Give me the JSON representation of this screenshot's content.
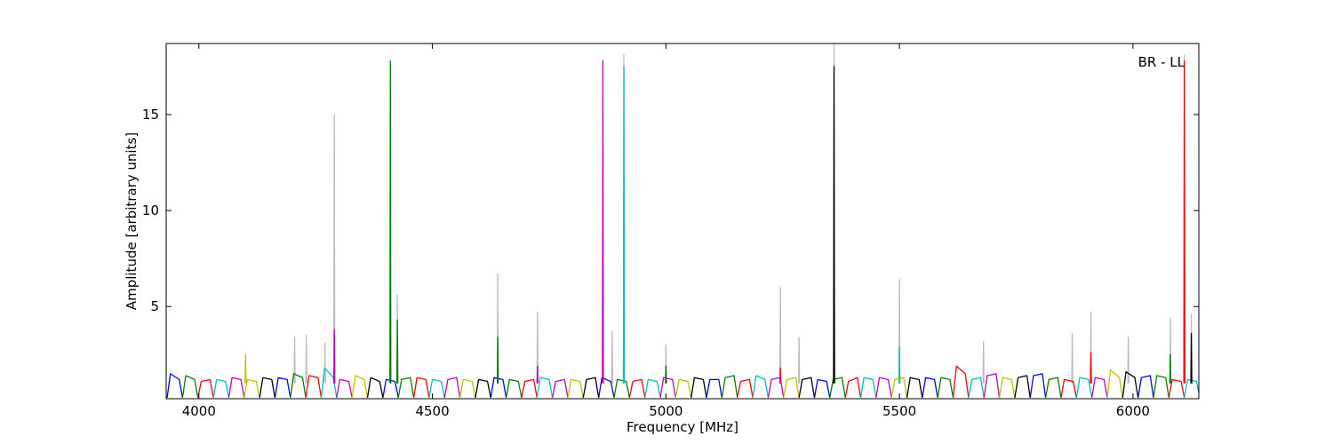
{
  "chart_data": {
    "type": "line",
    "xlabel": "Frequency [MHz]",
    "ylabel": "Amplitude [arbitrary units]",
    "annotation": "BR - LL",
    "xlim": [
      3930,
      6141
    ],
    "xticks": [
      4000,
      4500,
      5000,
      5500,
      6000
    ],
    "ylim": [
      0.2,
      18.7
    ],
    "yticks": [
      5,
      10,
      15
    ],
    "series": [
      {
        "color": "#bbbbbb",
        "x": [
          4289,
          4290,
          4291,
          null,
          4424,
          4425,
          4426,
          null,
          4639,
          4640,
          4641,
          null,
          4724,
          4725,
          4726,
          null,
          4909,
          4910,
          4911,
          null,
          4999,
          5000,
          5001,
          null,
          5244,
          5245,
          5246,
          null,
          5359,
          5360,
          5361,
          null,
          5499,
          5500,
          5501,
          null,
          5909,
          5910,
          5911,
          null,
          6079,
          6080,
          6081,
          null,
          6109,
          6110,
          6111,
          null,
          6124,
          6125,
          6126,
          null,
          4204,
          4205,
          4206,
          null,
          4229,
          4230,
          4231,
          null,
          4269,
          4270,
          4271,
          null,
          4884,
          4885,
          4886,
          null,
          5284,
          5285,
          5286,
          null,
          5679,
          5680,
          5681,
          null,
          5869,
          5870,
          5871,
          null,
          5989,
          5990,
          5991
        ],
        "values": [
          1.0,
          15,
          1.0,
          null,
          1.0,
          5.6,
          1.0,
          null,
          1.0,
          6.7,
          1.0,
          null,
          1.0,
          4.7,
          1.0,
          null,
          1.0,
          18.1,
          1.0,
          null,
          1.0,
          3,
          1.0,
          null,
          1.0,
          6,
          1.0,
          null,
          1.0,
          18.7,
          1.0,
          null,
          1.0,
          6.4,
          1.0,
          null,
          1.0,
          4.7,
          1.0,
          null,
          1.0,
          4.4,
          1.0,
          null,
          1.0,
          18.1,
          1.0,
          null,
          1.0,
          4.6,
          1.0,
          null,
          1.0,
          3.4,
          1.0,
          null,
          1.0,
          3.5,
          1.0,
          null,
          1.0,
          3.1,
          1.0,
          null,
          1.0,
          3.7,
          1.0,
          null,
          1.0,
          3.4,
          1.0,
          null,
          1.0,
          3.2,
          1.0,
          null,
          1.0,
          3.6,
          1.0,
          null,
          1.0,
          3.4,
          1.0
        ]
      },
      {
        "color": "#0000ff",
        "x": [
          3932,
          3939,
          3958,
          3965,
          null,
          4163,
          4170,
          4189,
          4196,
          null,
          4394,
          4401,
          4420,
          4427,
          null,
          4625,
          4632,
          4651,
          4658,
          null,
          4856,
          4863,
          4882,
          4889,
          null,
          5087,
          5094,
          5113,
          5120,
          null,
          5318,
          5325,
          5344,
          5351,
          null,
          5549,
          5556,
          5575,
          5582,
          null,
          5780,
          5787,
          5806,
          5813,
          null,
          6011,
          6018,
          6037,
          6044
        ],
        "values": [
          0.25,
          1.5,
          1.2,
          0.25,
          null,
          0.25,
          1.3,
          1.2,
          0.25,
          null,
          0.25,
          1.2,
          1.1,
          0.25,
          null,
          0.25,
          1.3,
          1.2,
          0.25,
          null,
          0.25,
          1.3,
          1.1,
          0.25,
          null,
          0.25,
          1.2,
          1.2,
          0.25,
          null,
          0.25,
          1.2,
          1.1,
          0.25,
          null,
          0.25,
          1.3,
          1.2,
          0.25,
          null,
          0.25,
          1.4,
          1.5,
          0.25,
          null,
          0.25,
          1.3,
          1.4,
          0.25
        ]
      },
      {
        "color": "#008000",
        "x": [
          3965,
          3972,
          3991,
          3998,
          null,
          4196,
          4203,
          4222,
          4229,
          null,
          4427,
          4434,
          4453,
          4460,
          null,
          4658,
          4665,
          4684,
          4691,
          null,
          4889,
          4896,
          4915,
          4922,
          null,
          5120,
          5127,
          5146,
          5153,
          null,
          5351,
          5358,
          5377,
          5384,
          null,
          5582,
          5589,
          5608,
          5615,
          null,
          5813,
          5820,
          5839,
          5846,
          null,
          6044,
          6051,
          6070,
          6077,
          null,
          4409,
          4410,
          4411,
          null,
          4424,
          4425,
          4426,
          null,
          4639,
          4640,
          4641,
          null,
          4999,
          5000,
          5001,
          null,
          6079,
          6080,
          6081
        ],
        "values": [
          0.25,
          1.4,
          1.2,
          0.25,
          null,
          0.25,
          1.5,
          1.3,
          0.25,
          null,
          0.25,
          1.2,
          1.3,
          0.25,
          null,
          0.25,
          1.2,
          1.1,
          0.25,
          null,
          0.25,
          1.2,
          1.1,
          0.25,
          null,
          0.25,
          1.3,
          1.4,
          0.25,
          null,
          0.25,
          1.2,
          1.3,
          0.25,
          null,
          0.25,
          1.3,
          1.2,
          0.25,
          null,
          0.25,
          1.2,
          1.3,
          0.25,
          null,
          0.25,
          1.4,
          1.3,
          0.25,
          null,
          1.0,
          17.8,
          1.0,
          null,
          1.0,
          4.3,
          1.0,
          null,
          1.0,
          3.4,
          1.0,
          null,
          1.0,
          1.9,
          1.0,
          null,
          1.0,
          2.5,
          1.0
        ]
      },
      {
        "color": "#ff0000",
        "x": [
          3998,
          4005,
          4024,
          4031,
          null,
          4229,
          4236,
          4255,
          4262,
          null,
          4460,
          4467,
          4486,
          4493,
          null,
          4691,
          4698,
          4717,
          4724,
          null,
          4922,
          4929,
          4948,
          4955,
          null,
          5153,
          5160,
          5179,
          5186,
          null,
          5384,
          5391,
          5410,
          5417,
          null,
          5615,
          5622,
          5641,
          5648,
          null,
          5846,
          5853,
          5872,
          5879,
          null,
          6077,
          6084,
          6103,
          6110,
          null,
          5244,
          5245,
          5246,
          null,
          5909,
          5910,
          5911,
          null,
          6109,
          6110,
          6111
        ],
        "values": [
          0.25,
          1.1,
          1.2,
          0.25,
          null,
          0.25,
          1.4,
          1.3,
          0.25,
          null,
          0.25,
          1.3,
          1.2,
          0.25,
          null,
          0.25,
          1.1,
          1.2,
          0.25,
          null,
          0.25,
          1.1,
          1.2,
          0.25,
          null,
          0.25,
          1.1,
          1.2,
          0.25,
          null,
          0.25,
          1.1,
          1.3,
          0.25,
          null,
          0.25,
          1.9,
          1.5,
          0.25,
          null,
          0.25,
          1.2,
          1.1,
          0.25,
          null,
          0.25,
          1.2,
          1.1,
          0.25,
          null,
          1.0,
          1.8,
          1.0,
          null,
          1.0,
          2.6,
          1.0,
          null,
          1.0,
          17.8,
          1.0
        ]
      },
      {
        "color": "#00bfbf",
        "x": [
          4031,
          4038,
          4057,
          4064,
          null,
          4262,
          4269,
          4288,
          4295,
          null,
          4493,
          4500,
          4519,
          4526,
          null,
          4724,
          4731,
          4750,
          4757,
          null,
          4955,
          4962,
          4981,
          4988,
          null,
          5186,
          5193,
          5212,
          5219,
          null,
          5417,
          5424,
          5443,
          5450,
          null,
          5648,
          5655,
          5674,
          5681,
          null,
          5879,
          5886,
          5905,
          5912,
          null,
          6110,
          6117,
          6136,
          6143,
          null,
          4909,
          4910,
          4911,
          null,
          5499,
          5500,
          5501
        ],
        "values": [
          0.25,
          1.2,
          1.1,
          0.25,
          null,
          0.25,
          1.8,
          1.3,
          0.25,
          null,
          0.25,
          1.2,
          1.1,
          0.25,
          null,
          0.25,
          1.3,
          1.2,
          0.25,
          null,
          0.25,
          1.2,
          1.1,
          0.25,
          null,
          0.25,
          1.4,
          1.2,
          0.25,
          null,
          0.25,
          1.3,
          1.2,
          0.25,
          null,
          0.25,
          1.2,
          1.3,
          0.25,
          null,
          0.25,
          1.3,
          1.2,
          0.25,
          null,
          0.25,
          1.2,
          1.1,
          0.25,
          null,
          1.0,
          17.5,
          1.0,
          null,
          1.0,
          2.9,
          1.0
        ]
      },
      {
        "color": "#bf00bf",
        "x": [
          4064,
          4071,
          4090,
          4097,
          null,
          4295,
          4302,
          4321,
          4328,
          null,
          4526,
          4533,
          4552,
          4559,
          null,
          4757,
          4764,
          4783,
          4790,
          null,
          4988,
          4995,
          5014,
          5021,
          null,
          5219,
          5226,
          5245,
          5252,
          null,
          5450,
          5457,
          5476,
          5483,
          null,
          5681,
          5688,
          5707,
          5714,
          null,
          5912,
          5919,
          5938,
          5945,
          null,
          4289,
          4290,
          4291,
          null,
          4724,
          4725,
          4726,
          null,
          4864,
          4865,
          4866
        ],
        "values": [
          0.25,
          1.3,
          1.2,
          0.25,
          null,
          0.25,
          1.2,
          1.1,
          0.25,
          null,
          0.25,
          1.2,
          1.3,
          0.25,
          null,
          0.25,
          1.1,
          1.2,
          0.25,
          null,
          0.25,
          1.3,
          1.2,
          0.25,
          null,
          0.25,
          1.2,
          1.3,
          0.25,
          null,
          0.25,
          1.3,
          1.2,
          0.25,
          null,
          0.25,
          1.4,
          1.5,
          0.25,
          null,
          0.25,
          1.3,
          1.2,
          0.25,
          null,
          1.0,
          3.8,
          1.0,
          null,
          1.0,
          1.9,
          1.0,
          null,
          1.0,
          17.8,
          1.0
        ]
      },
      {
        "color": "#bfbf00",
        "x": [
          4097,
          4104,
          4123,
          4130,
          null,
          4328,
          4335,
          4354,
          4361,
          null,
          4559,
          4566,
          4585,
          4592,
          null,
          4790,
          4797,
          4816,
          4823,
          null,
          5021,
          5028,
          5047,
          5054,
          null,
          5252,
          5259,
          5278,
          5285,
          null,
          5483,
          5490,
          5509,
          5516,
          null,
          5714,
          5721,
          5740,
          5747,
          null,
          5945,
          5952,
          5971,
          5978,
          null,
          4099,
          4100,
          4101
        ],
        "values": [
          0.25,
          1.2,
          1.1,
          0.25,
          null,
          0.25,
          1.4,
          1.2,
          0.25,
          null,
          0.25,
          1.2,
          1.1,
          0.25,
          null,
          0.25,
          1.2,
          1.1,
          0.25,
          null,
          0.25,
          1.2,
          1.1,
          0.25,
          null,
          0.25,
          1.2,
          1.3,
          0.25,
          null,
          0.25,
          1.2,
          1.3,
          0.25,
          null,
          0.25,
          1.3,
          1.2,
          0.25,
          null,
          0.25,
          1.7,
          1.3,
          0.25,
          null,
          1.0,
          2.5,
          1.0
        ]
      },
      {
        "color": "#000000",
        "x": [
          4130,
          4137,
          4156,
          4163,
          null,
          4361,
          4368,
          4387,
          4394,
          null,
          4592,
          4599,
          4618,
          4625,
          null,
          4823,
          4830,
          4849,
          4856,
          null,
          5054,
          5061,
          5080,
          5087,
          null,
          5285,
          5292,
          5311,
          5318,
          null,
          5516,
          5523,
          5542,
          5549,
          null,
          5747,
          5754,
          5773,
          5780,
          null,
          5978,
          5985,
          6004,
          6011,
          null,
          5359,
          5360,
          5361,
          null,
          6124,
          6125,
          6126
        ],
        "values": [
          0.25,
          1.3,
          1.2,
          0.25,
          null,
          0.25,
          1.3,
          1.1,
          0.25,
          null,
          0.25,
          1.2,
          1.1,
          0.25,
          null,
          0.25,
          1.2,
          1.3,
          0.25,
          null,
          0.25,
          1.3,
          1.2,
          0.25,
          null,
          0.25,
          1.2,
          1.3,
          0.25,
          null,
          0.25,
          1.3,
          1.2,
          0.25,
          null,
          0.25,
          1.3,
          1.4,
          0.25,
          null,
          0.25,
          1.6,
          1.3,
          0.25,
          null,
          1.0,
          17.5,
          1.0,
          null,
          1.0,
          3.6,
          1.0
        ]
      }
    ]
  }
}
